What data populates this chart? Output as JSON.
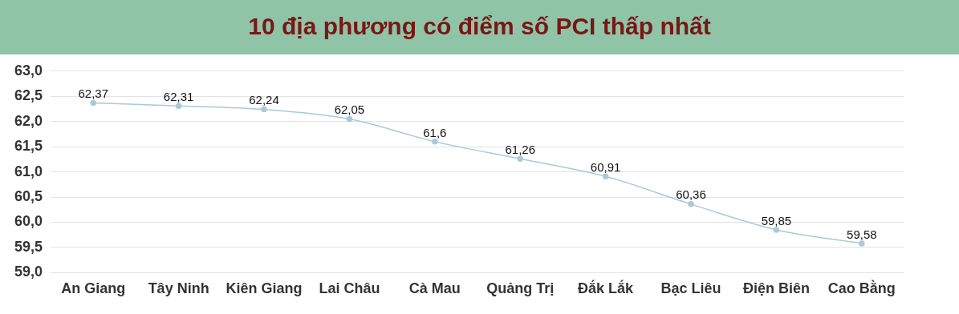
{
  "chart_data": {
    "type": "line",
    "title": "10 địa phương có điểm số PCI thấp nhất",
    "categories": [
      "An Giang",
      "Tây Ninh",
      "Kiên Giang",
      "Lai Châu",
      "Cà Mau",
      "Quảng Trị",
      "Đắk Lắk",
      "Bạc Liêu",
      "Điện Biên",
      "Cao Bằng"
    ],
    "series": [
      {
        "color": "#a9c9d9",
        "values": [
          62.37,
          62.31,
          62.24,
          62.05,
          61.6,
          61.26,
          60.91,
          60.36,
          59.85,
          59.58
        ],
        "value_labels": [
          "62,37",
          "62,31",
          "62,24",
          "62,05",
          "61,6",
          "61,26",
          "60,91",
          "60,36",
          "59,85",
          "59,58"
        ]
      }
    ],
    "ylim": [
      59,
      63
    ],
    "yticks": [
      {
        "value": 59,
        "label": "59,0"
      },
      {
        "value": 59.5,
        "label": "59,5"
      },
      {
        "value": 60,
        "label": "60,0"
      },
      {
        "value": 60.5,
        "label": "60,5"
      },
      {
        "value": 61,
        "label": "61,0"
      },
      {
        "value": 61.5,
        "label": "61,5"
      },
      {
        "value": 62,
        "label": "62,0"
      },
      {
        "value": 62.5,
        "label": "62,5"
      },
      {
        "value": 63,
        "label": "63,0"
      }
    ],
    "grid": "y",
    "legend": false,
    "marker": "circle",
    "line_style": "solid"
  }
}
